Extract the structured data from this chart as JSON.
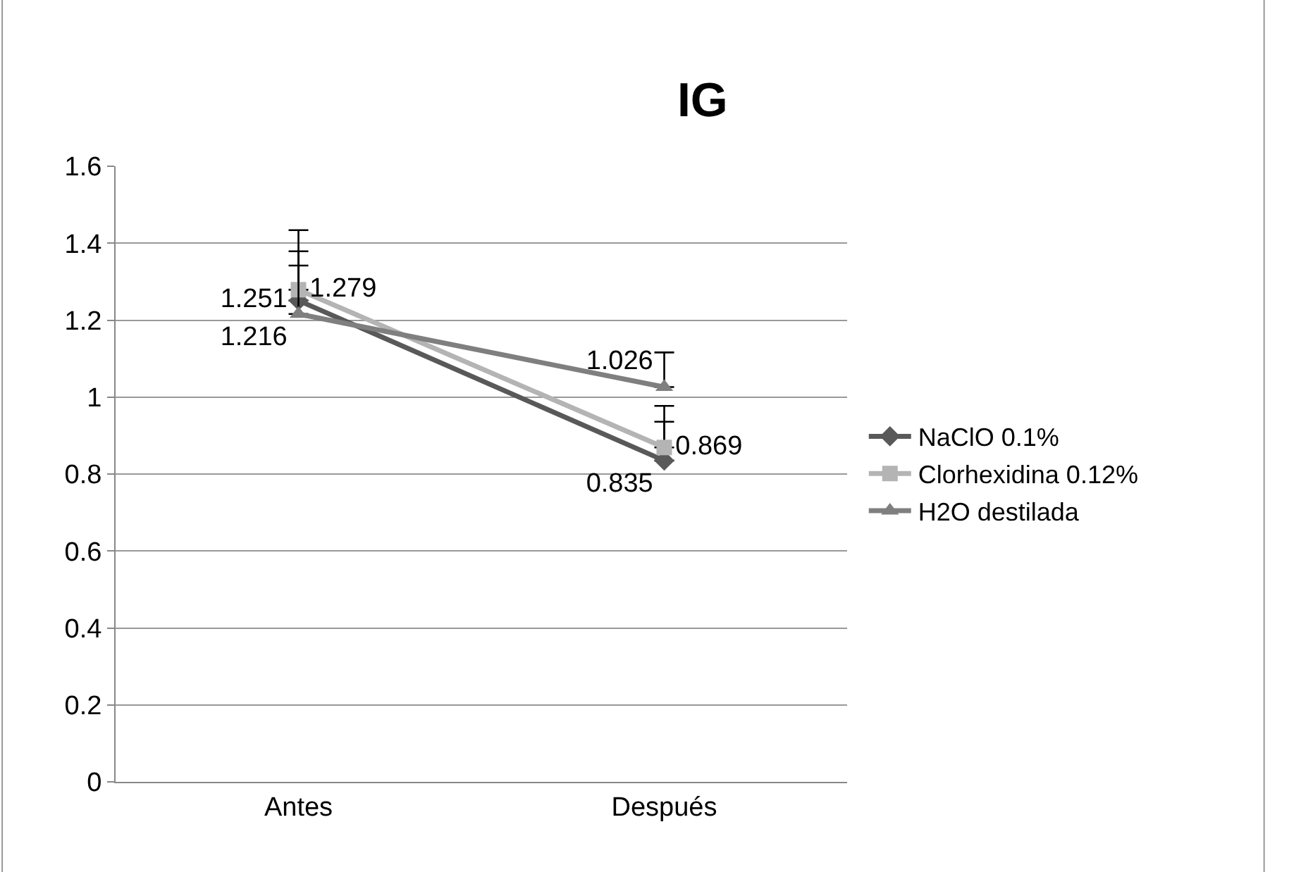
{
  "chart_data": {
    "type": "line",
    "title": "IG",
    "categories": [
      "Antes",
      "Después"
    ],
    "series": [
      {
        "name": "NaClO 0.1%",
        "color": "#595959",
        "marker": "diamond",
        "values": [
          1.251,
          0.835
        ],
        "errors": [
          [
            1.251,
            1.434
          ],
          [
            0.835,
            0.936
          ]
        ]
      },
      {
        "name": "Clorhexidina 0.12%",
        "color": "#b4b4b4",
        "marker": "square",
        "values": [
          1.279,
          0.869
        ],
        "errors": [
          [
            1.279,
            1.379
          ],
          [
            0.869,
            0.977
          ]
        ]
      },
      {
        "name": "H2O destilada",
        "color": "#7f7f7f",
        "marker": "triangle",
        "values": [
          1.216,
          1.026
        ],
        "errors": [
          [
            1.216,
            1.342
          ],
          [
            1.026,
            1.116
          ]
        ]
      }
    ],
    "ylim": [
      0,
      1.6
    ],
    "yticks": [
      0,
      0.2,
      0.4,
      0.6,
      0.8,
      1,
      1.2,
      1.4,
      1.6
    ],
    "grid": "y",
    "legend": "right",
    "data_labels": true
  }
}
